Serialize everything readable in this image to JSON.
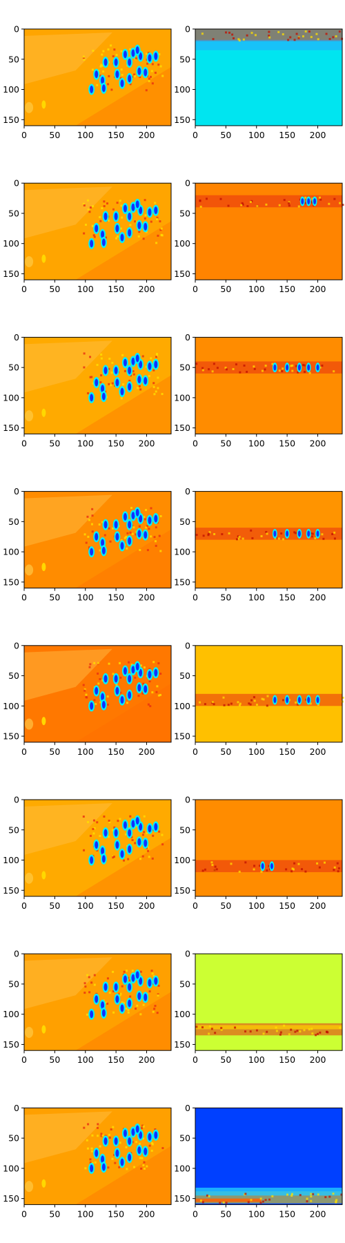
{
  "chart_data": {
    "type": "heatmap",
    "layout": "8 rows x 2 columns of image subplots",
    "colormap": "jet",
    "xlim": [
      0,
      240
    ],
    "ylim": [
      160,
      0
    ],
    "xticks": [
      0,
      50,
      100,
      150,
      200
    ],
    "yticks": [
      0,
      50,
      100,
      150
    ],
    "x_tick_labels": [
      "0",
      "50",
      "100",
      "150",
      "200"
    ],
    "y_tick_labels": [
      "0",
      "50",
      "100",
      "150"
    ],
    "colors": {
      "cyan": "#00e5f0",
      "deep_blue": "#0040ff",
      "orange": "#ff8c00",
      "yellow_orange": "#ffc000",
      "yellow_green": "#ccff33",
      "red": "#e83010"
    },
    "panels": [
      {
        "row": 1,
        "left_background": "#ffa500",
        "right_background": "#00e5f0",
        "right_band_y": 10
      },
      {
        "row": 2,
        "left_background": "#ffa500",
        "right_background": "#ff8400",
        "right_band_y": 30
      },
      {
        "row": 3,
        "left_background": "#ffaa00",
        "right_background": "#ff8c00",
        "right_band_y": 50
      },
      {
        "row": 4,
        "left_background": "#ff8c00",
        "right_background": "#ff9400",
        "right_band_y": 70
      },
      {
        "row": 5,
        "left_background": "#ff7800",
        "right_background": "#ffc000",
        "right_band_y": 90
      },
      {
        "row": 6,
        "left_background": "#ffaa00",
        "right_background": "#ff8c00",
        "right_band_y": 110
      },
      {
        "row": 7,
        "left_background": "#ffa000",
        "right_background": "#ccff33",
        "right_band_y": 125
      },
      {
        "row": 8,
        "left_background": "#ffa000",
        "right_background": "#0040ff",
        "right_band_y": 148
      }
    ]
  }
}
